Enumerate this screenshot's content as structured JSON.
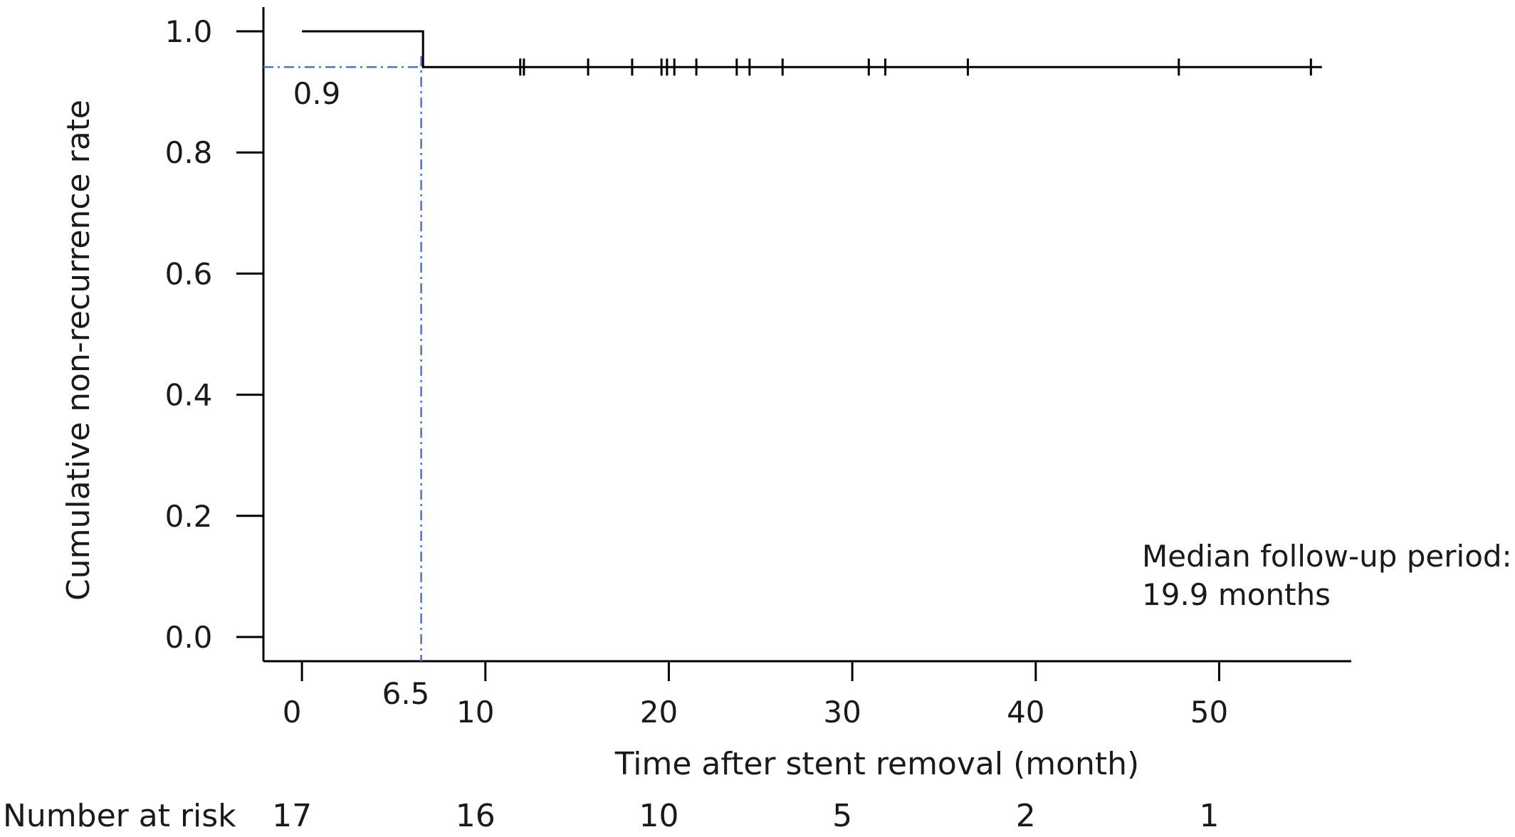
{
  "chart_data": {
    "type": "line",
    "xlabel": "Time after stent removal (month)",
    "ylabel": "Cumulative non-recurrence rate",
    "xlim": [
      -2.1,
      57.2
    ],
    "ylim": [
      -0.04,
      1.04
    ],
    "x_ticks": [
      0,
      10,
      20,
      30,
      40,
      50
    ],
    "x_tick_labels": [
      "0",
      "10",
      "20",
      "30",
      "40",
      "50"
    ],
    "y_ticks": [
      0.0,
      0.2,
      0.4,
      0.6,
      0.8,
      1.0
    ],
    "y_tick_labels": [
      "0.0",
      "0.2",
      "0.4",
      "0.6",
      "0.8",
      "1.0"
    ],
    "grid": false,
    "series": [
      {
        "steps": [
          {
            "x": 0,
            "y": 1.0
          },
          {
            "x": 6.6,
            "y": 1.0
          },
          {
            "x": 6.6,
            "y": 0.941
          },
          {
            "x": 55.6,
            "y": 0.941
          }
        ],
        "censored_x": [
          11.9,
          12.1,
          15.6,
          18.0,
          19.6,
          19.9,
          20.3,
          21.5,
          23.7,
          24.4,
          26.2,
          30.9,
          31.8,
          36.3,
          47.8,
          55.0
        ],
        "color": "#000000"
      }
    ],
    "median_reference": {
      "x": 6.5,
      "y": 0.941,
      "x_label": "6.5",
      "y_label": "0.9",
      "color": "#4a76c9"
    },
    "annotation": {
      "line1": "Median follow-up period:",
      "line2": "19.9 months"
    },
    "risk_table": {
      "label": "Number at risk",
      "times": [
        0,
        10,
        20,
        30,
        40,
        50
      ],
      "counts": [
        "17",
        "16",
        "10",
        "5",
        "2",
        "1"
      ]
    }
  }
}
